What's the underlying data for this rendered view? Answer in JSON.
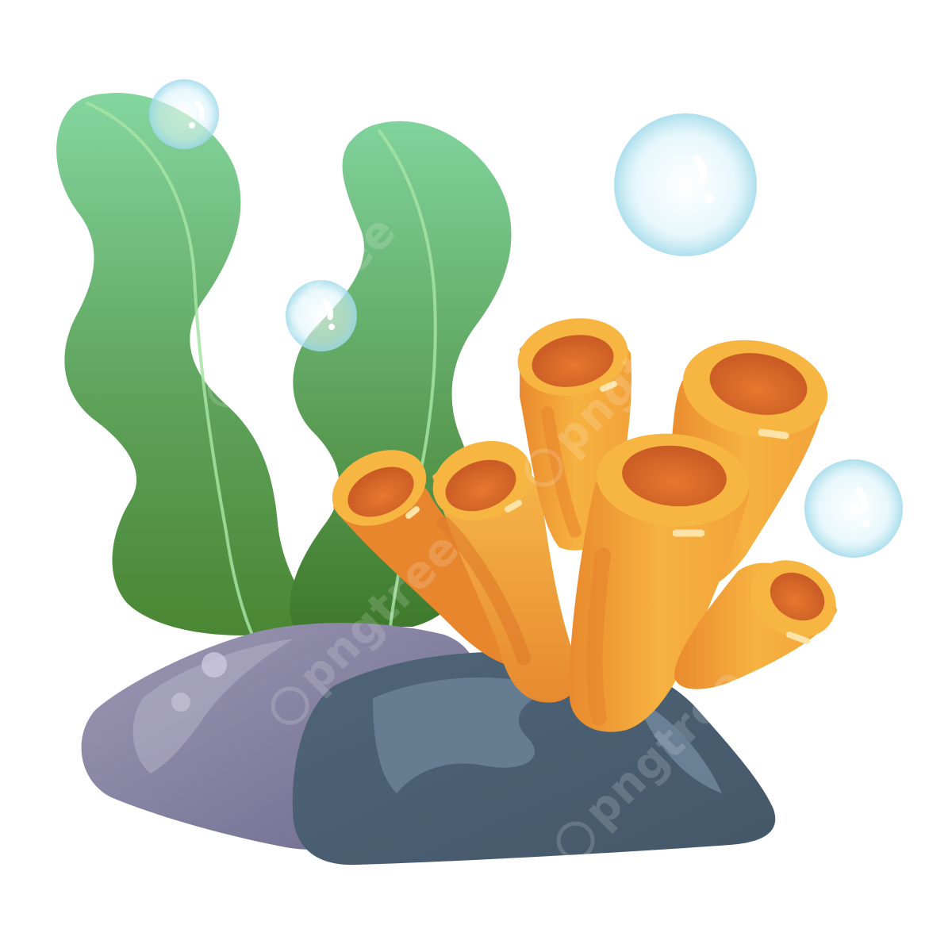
{
  "watermark": {
    "text": "pngtree"
  },
  "scene": {
    "subjects": [
      "seaweed-left",
      "seaweed-right",
      "tube-coral",
      "rock-purple",
      "rock-slate",
      "bubbles"
    ],
    "colors": {
      "seaweed_top": "#7ed39a",
      "seaweed_bottom": "#4a8a32",
      "coral_light": "#f7b845",
      "coral_dark": "#e3782a",
      "coral_hole": "#d9672a",
      "rock_purple": "#8e8aa6",
      "rock_slate": "#566b82",
      "bubble": "#bfe9f3"
    }
  }
}
